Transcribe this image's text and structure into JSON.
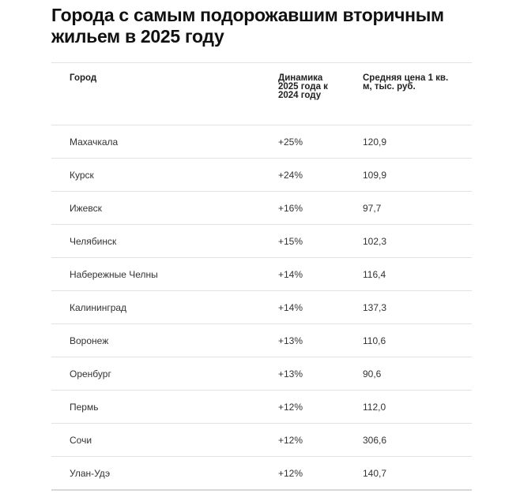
{
  "title": "Города с самым подорожавшим вторичным жильем в 2025 году",
  "table": {
    "headers": [
      "Город",
      "Динамика 2025 года к 2024 году",
      "Средняя цена 1 кв. м, тыс. руб."
    ],
    "rows": [
      [
        "Махачкала",
        "+25%",
        "120,9"
      ],
      [
        "Курск",
        "+24%",
        "109,9"
      ],
      [
        "Ижевск",
        "+16%",
        "97,7"
      ],
      [
        "Челябинск",
        "+15%",
        "102,3"
      ],
      [
        "Набережные Челны",
        "+14%",
        "116,4"
      ],
      [
        "Калининград",
        "+14%",
        "137,3"
      ],
      [
        "Воронеж",
        "+13%",
        "110,6"
      ],
      [
        "Оренбург",
        "+13%",
        "90,6"
      ],
      [
        "Пермь",
        "+12%",
        "112,0"
      ],
      [
        "Сочи",
        "+12%",
        "306,6"
      ],
      [
        "Улан-Удэ",
        "+12%",
        "140,7"
      ]
    ]
  }
}
